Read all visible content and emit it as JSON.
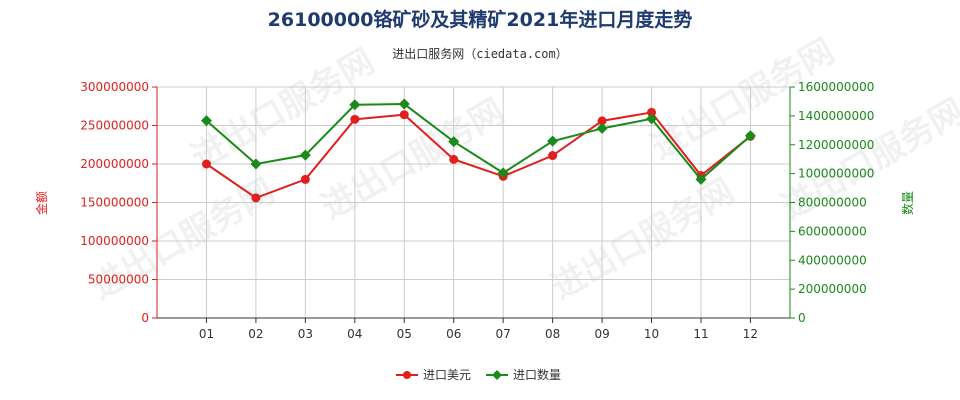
{
  "title": "26100000铬矿砂及其精矿2021年进口月度走势",
  "subtitle": "进出口服务网（ciedata.com）",
  "watermark": "进出口服务网",
  "colors": {
    "usd": "#e01f1f",
    "qty": "#1a8a1a",
    "title": "#1e3a6e",
    "grid": "#cccccc"
  },
  "chart_data": {
    "type": "line",
    "categories": [
      "01",
      "02",
      "03",
      "04",
      "05",
      "06",
      "07",
      "08",
      "09",
      "10",
      "11",
      "12"
    ],
    "ylabel_left": "金额",
    "ylabel_right": "数量",
    "ylim_left": [
      0,
      300000000
    ],
    "ylim_right": [
      0,
      1600000000
    ],
    "yticks_left": [
      "0",
      "50000000",
      "100000000",
      "150000000",
      "200000000",
      "250000000",
      "300000000"
    ],
    "yticks_right": [
      "0",
      "200000000",
      "400000000",
      "600000000",
      "800000000",
      "1000000000",
      "1200000000",
      "1400000000",
      "1600000000"
    ],
    "grid": true,
    "legend_position": "bottom",
    "series": [
      {
        "name": "进口美元",
        "axis": "left",
        "color": "#e01f1f",
        "values": [
          200000000,
          156000000,
          180000000,
          258000000,
          264000000,
          206000000,
          184000000,
          211000000,
          256000000,
          267000000,
          185000000,
          236000000
        ]
      },
      {
        "name": "进口数量",
        "axis": "right",
        "color": "#1a8a1a",
        "values": [
          1367000000,
          1067000000,
          1128000000,
          1477000000,
          1482000000,
          1222000000,
          1005000000,
          1225000000,
          1313000000,
          1380000000,
          960000000,
          1262000000
        ]
      }
    ]
  }
}
